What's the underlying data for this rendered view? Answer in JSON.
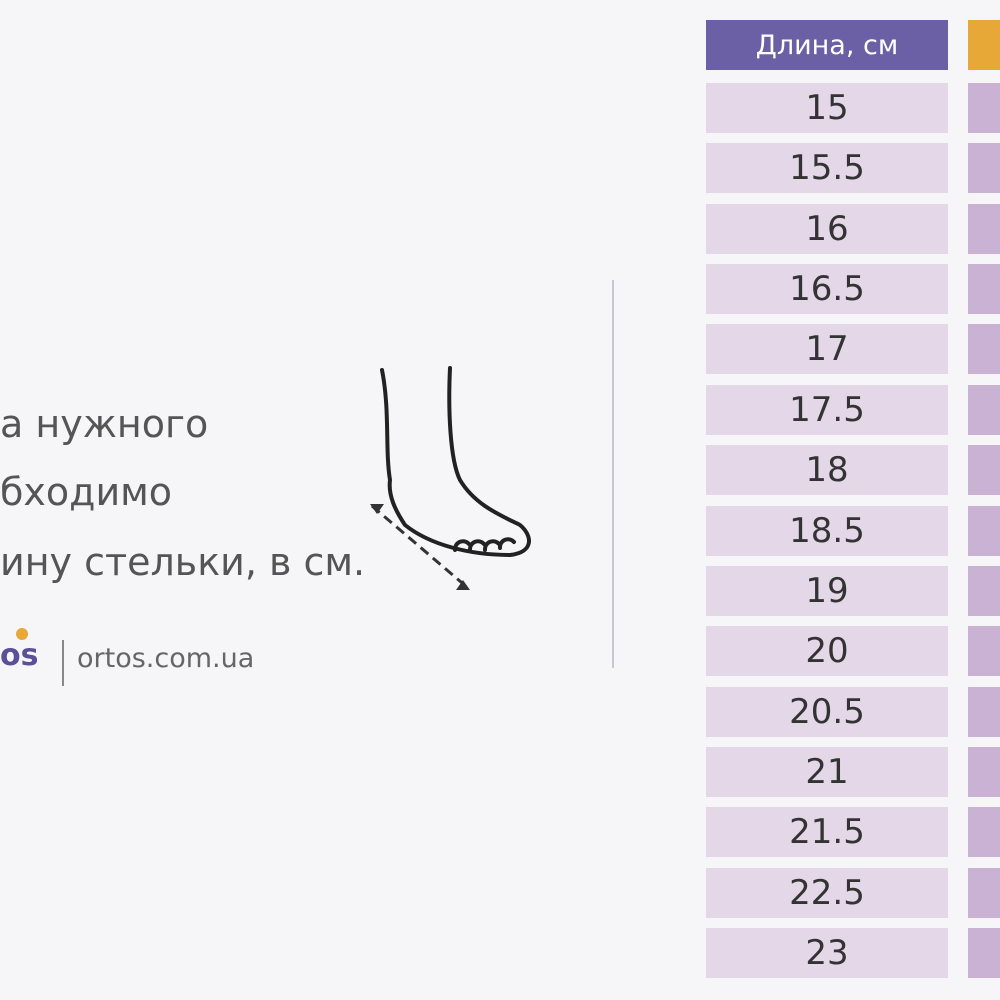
{
  "text": {
    "lines": [
      "а нужного",
      "бходимо",
      "ину стельки, в см."
    ]
  },
  "logo": {
    "mark": "os",
    "site": "ortos.com.ua"
  },
  "table": {
    "header": [
      "Длина, см"
    ],
    "rows": [
      15,
      15.5,
      16,
      16.5,
      17,
      17.5,
      18,
      18.5,
      19,
      20,
      20.5,
      21,
      21.5,
      22.5,
      23
    ]
  }
}
